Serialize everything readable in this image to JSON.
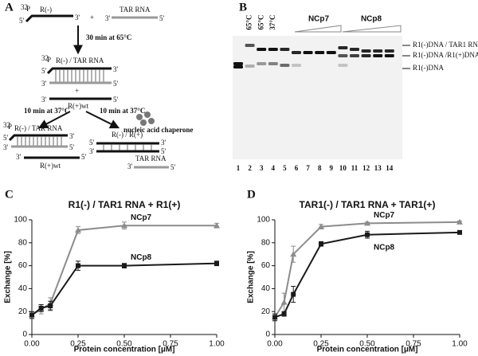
{
  "panel_labels": [
    "A",
    "B",
    "C",
    "D"
  ],
  "diagram": {
    "ends": {
      "three": "3'",
      "five": "5'"
    },
    "isotope": "32",
    "element": "P",
    "r_minus": "R(-)",
    "tar_rna": "TAR RNA",
    "plus": "+",
    "step1": "30 min at 65°C",
    "hybrid": "R(-) / TAR RNA",
    "r_plus": "R(+)wt",
    "step2": "10 min at 37°C",
    "chaperone": "nucleic acid chaperone",
    "product": "R(-) / R(+)"
  },
  "gel": {
    "headers": [
      "65°C",
      "65°C",
      "37°C"
    ],
    "groups": [
      "NCp7",
      "NCp8"
    ],
    "lanes": [
      "1",
      "2",
      "3",
      "4",
      "5",
      "6",
      "7",
      "8",
      "9",
      "10",
      "11",
      "12",
      "13",
      "14"
    ],
    "bands": [
      "R1(-)DNA / TAR1 RNA",
      "R1(-)DNA /R1(+)DNA",
      "R1(-)DNA"
    ]
  },
  "chart_data": [
    {
      "type": "line",
      "title": "R1(-) / TAR1 RNA + R1(+)",
      "xlabel": "Protein concentration [µM]",
      "ylabel": "Exchange [%]",
      "x": [
        0,
        0.05,
        0.1,
        0.25,
        0.5,
        1
      ],
      "xlim": [
        0,
        1
      ],
      "ylim": [
        0,
        100
      ],
      "xticks": [
        {
          "value": 0,
          "label": "0.00"
        },
        {
          "value": 0.25,
          "label": "0.25"
        },
        {
          "value": 0.5,
          "label": "0.50"
        },
        {
          "value": 0.75,
          "label": "0.75"
        },
        {
          "value": 1,
          "label": "1.00"
        }
      ],
      "yticks": [
        0,
        20,
        40,
        60,
        80,
        100
      ],
      "series": [
        {
          "name": "NCp7",
          "color": "#8c8c8c",
          "marker": "triangle",
          "values": [
            17,
            22,
            27,
            91,
            95,
            95
          ],
          "errors": [
            3,
            4,
            5,
            3,
            3,
            2
          ]
        },
        {
          "name": "NCp8",
          "color": "#1a1a1a",
          "marker": "square",
          "values": [
            17,
            23,
            25,
            60,
            60,
            62
          ],
          "errors": [
            3,
            3,
            4,
            4,
            2,
            2
          ]
        }
      ]
    },
    {
      "type": "line",
      "title": "TAR1(-) / TAR1 RNA + TAR1(+)",
      "xlabel": "Protein concentration [µM]",
      "ylabel": "Exchange [%]",
      "x": [
        0,
        0.05,
        0.1,
        0.25,
        0.5,
        1
      ],
      "xlim": [
        0,
        1
      ],
      "ylim": [
        0,
        100
      ],
      "xticks": [
        {
          "value": 0,
          "label": "0.00"
        },
        {
          "value": 0.25,
          "label": "0.25"
        },
        {
          "value": 0.5,
          "label": "0.50"
        },
        {
          "value": 0.75,
          "label": "0.75"
        },
        {
          "value": 1,
          "label": "1.00"
        }
      ],
      "yticks": [
        0,
        20,
        40,
        60,
        80,
        100
      ],
      "series": [
        {
          "name": "NCp7",
          "color": "#8c8c8c",
          "marker": "triangle",
          "values": [
            15,
            28,
            70,
            94,
            97,
            98
          ],
          "errors": [
            3,
            8,
            7,
            2,
            1,
            1
          ]
        },
        {
          "name": "NCp8",
          "color": "#1a1a1a",
          "marker": "square",
          "values": [
            15,
            18,
            35,
            79,
            87,
            89
          ],
          "errors": [
            3,
            2,
            7,
            2,
            3,
            1
          ]
        }
      ]
    }
  ]
}
